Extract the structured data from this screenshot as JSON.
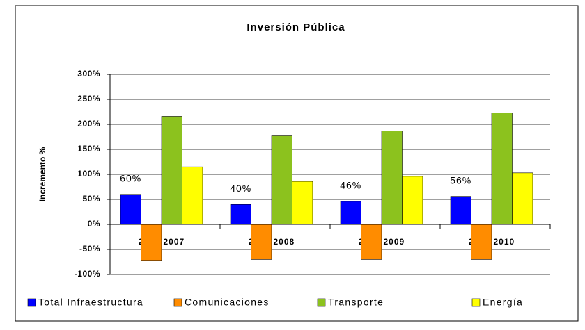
{
  "chart_data": {
    "type": "bar",
    "title": "Inversión Pública",
    "y_label": "Incremento %",
    "categories": [
      "2002-2007",
      "2002-2008",
      "2002-2009",
      "2002-2010"
    ],
    "series": [
      {
        "name": "Total Infraestructura",
        "color": "#0000ff",
        "values": [
          60,
          40,
          46,
          56
        ],
        "value_labels": [
          "60%",
          "40%",
          "46%",
          "56%"
        ]
      },
      {
        "name": "Comunicaciones",
        "color": "#ff8c00",
        "values": [
          -72,
          -70,
          -70,
          -70
        ]
      },
      {
        "name": "Transporte",
        "color": "#8cc21e",
        "values": [
          216,
          177,
          187,
          223
        ]
      },
      {
        "name": "Energía",
        "color": "#ffff00",
        "values": [
          115,
          86,
          96,
          103
        ]
      }
    ],
    "ylim": [
      -100,
      300
    ],
    "yticks": [
      {
        "value": -100,
        "label": "-100%"
      },
      {
        "value": -50,
        "label": "-50%"
      },
      {
        "value": 0,
        "label": "0%"
      },
      {
        "value": 50,
        "label": "50%"
      },
      {
        "value": 100,
        "label": "100%"
      },
      {
        "value": 150,
        "label": "150%"
      },
      {
        "value": 200,
        "label": "200%"
      },
      {
        "value": 250,
        "label": "250%"
      },
      {
        "value": 300,
        "label": "300%"
      }
    ],
    "grid": true,
    "legend": "bottom"
  }
}
